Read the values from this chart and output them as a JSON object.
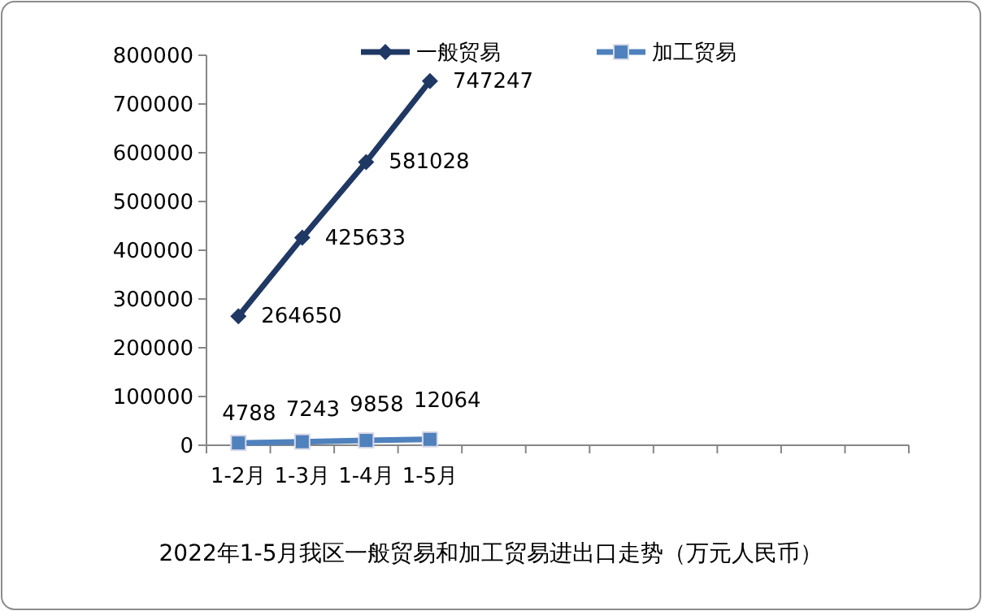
{
  "chart_data": {
    "type": "line",
    "title": "2022年1-5月我区一般贸易和加工贸易进出口走势（万元人民币）",
    "categories": [
      "1-2月",
      "1-3月",
      "1-4月",
      "1-5月",
      null,
      null,
      null,
      null,
      null,
      null,
      null
    ],
    "series": [
      {
        "name": "一般贸易",
        "color": "#1f3864",
        "marker": "diamond",
        "values": [
          264650,
          425633,
          581028,
          747247,
          null,
          null,
          null,
          null,
          null,
          null,
          null
        ]
      },
      {
        "name": "加工贸易",
        "color": "#4f81bd",
        "marker": "square",
        "values": [
          4788,
          7243,
          9858,
          12064,
          null,
          null,
          null,
          null,
          null,
          null,
          null
        ]
      }
    ],
    "ylim": [
      0,
      800000
    ],
    "yticks": [
      0,
      100000,
      200000,
      300000,
      400000,
      500000,
      600000,
      700000,
      800000
    ],
    "data_labels": true,
    "legend": "top",
    "grid": false
  }
}
